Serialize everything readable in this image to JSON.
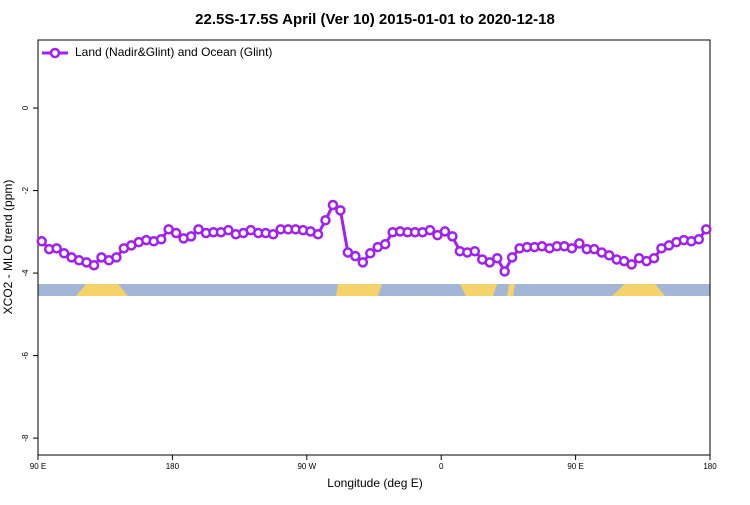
{
  "chart_data": {
    "type": "line",
    "title": "22.5S-17.5S April (Ver 10)   2015-01-01 to 2020-12-18",
    "x_label": "Longitude (deg E)",
    "y_label": "XCO2 - MLO trend (ppm)",
    "x": [
      92.5,
      97.5,
      102.5,
      107.5,
      112.5,
      117.5,
      122.5,
      127.5,
      132.5,
      137.5,
      142.5,
      147.5,
      152.5,
      157.5,
      162.5,
      167.5,
      172.5,
      177.5,
      182.5,
      187.5,
      192.5,
      197.5,
      202.5,
      207.5,
      212.5,
      217.5,
      222.5,
      227.5,
      232.5,
      237.5,
      242.5,
      247.5,
      252.5,
      257.5,
      262.5,
      267.5,
      272.5,
      277.5,
      282.5,
      287.5,
      292.5,
      297.5,
      302.5,
      307.5,
      312.5,
      317.5,
      322.5,
      327.5,
      332.5,
      337.5,
      342.5,
      347.5,
      352.5,
      357.5,
      362.5,
      367.5,
      372.5,
      377.5,
      382.5,
      387.5,
      392.5,
      397.5,
      402.5,
      407.5,
      412.5,
      417.5,
      422.5,
      427.5,
      432.5,
      437.5,
      442.5,
      447.5,
      452.5,
      457.5,
      462.5,
      467.5,
      472.5,
      477.5,
      482.5,
      487.5,
      492.5,
      497.5,
      502.5,
      507.5,
      512.5,
      517.5,
      522.5,
      527.5,
      532.5,
      537.5
    ],
    "series": [
      {
        "name": "Land (Nadir&Glint) and Ocean (Glint)",
        "color": "#a020f0",
        "values": [
          -3.23,
          -3.42,
          -3.4,
          -3.52,
          -3.62,
          -3.69,
          -3.74,
          -3.81,
          -3.62,
          -3.69,
          -3.62,
          -3.4,
          -3.33,
          -3.25,
          -3.2,
          -3.23,
          -3.18,
          -2.94,
          -3.03,
          -3.16,
          -3.11,
          -2.94,
          -3.03,
          -3.01,
          -3.01,
          -2.96,
          -3.06,
          -3.03,
          -2.96,
          -3.03,
          -3.03,
          -3.06,
          -2.94,
          -2.94,
          -2.94,
          -2.96,
          -2.99,
          -3.06,
          -2.72,
          -2.35,
          -2.48,
          -3.5,
          -3.59,
          -3.74,
          -3.52,
          -3.37,
          -3.3,
          -3.01,
          -2.99,
          -3.01,
          -3.01,
          -3.01,
          -2.96,
          -3.08,
          -2.99,
          -3.11,
          -3.47,
          -3.5,
          -3.47,
          -3.67,
          -3.74,
          -3.64,
          -3.96,
          -3.62,
          -3.4,
          -3.37,
          -3.37,
          -3.35,
          -3.4,
          -3.35,
          -3.35,
          -3.4,
          -3.28,
          -3.42,
          -3.42,
          -3.5,
          -3.57,
          -3.67,
          -3.71,
          -3.79,
          -3.64,
          -3.71,
          -3.64,
          -3.4,
          -3.33,
          -3.25,
          -3.2,
          -3.23,
          -3.18,
          -2.94
        ]
      }
    ],
    "xlim": [
      90,
      540
    ],
    "xticks": [
      {
        "value": 90,
        "label": "90 E"
      },
      180,
      {
        "value": 270,
        "label": "90 W"
      },
      {
        "value": 360,
        "label": "0"
      },
      {
        "value": 450,
        "label": "90 E"
      },
      {
        "value": 540,
        "label": "180"
      }
    ],
    "ylim": [
      -8.41,
      1.65
    ],
    "yticks": [
      -8,
      -6,
      -4,
      -2,
      0
    ],
    "legend": "top-left"
  }
}
